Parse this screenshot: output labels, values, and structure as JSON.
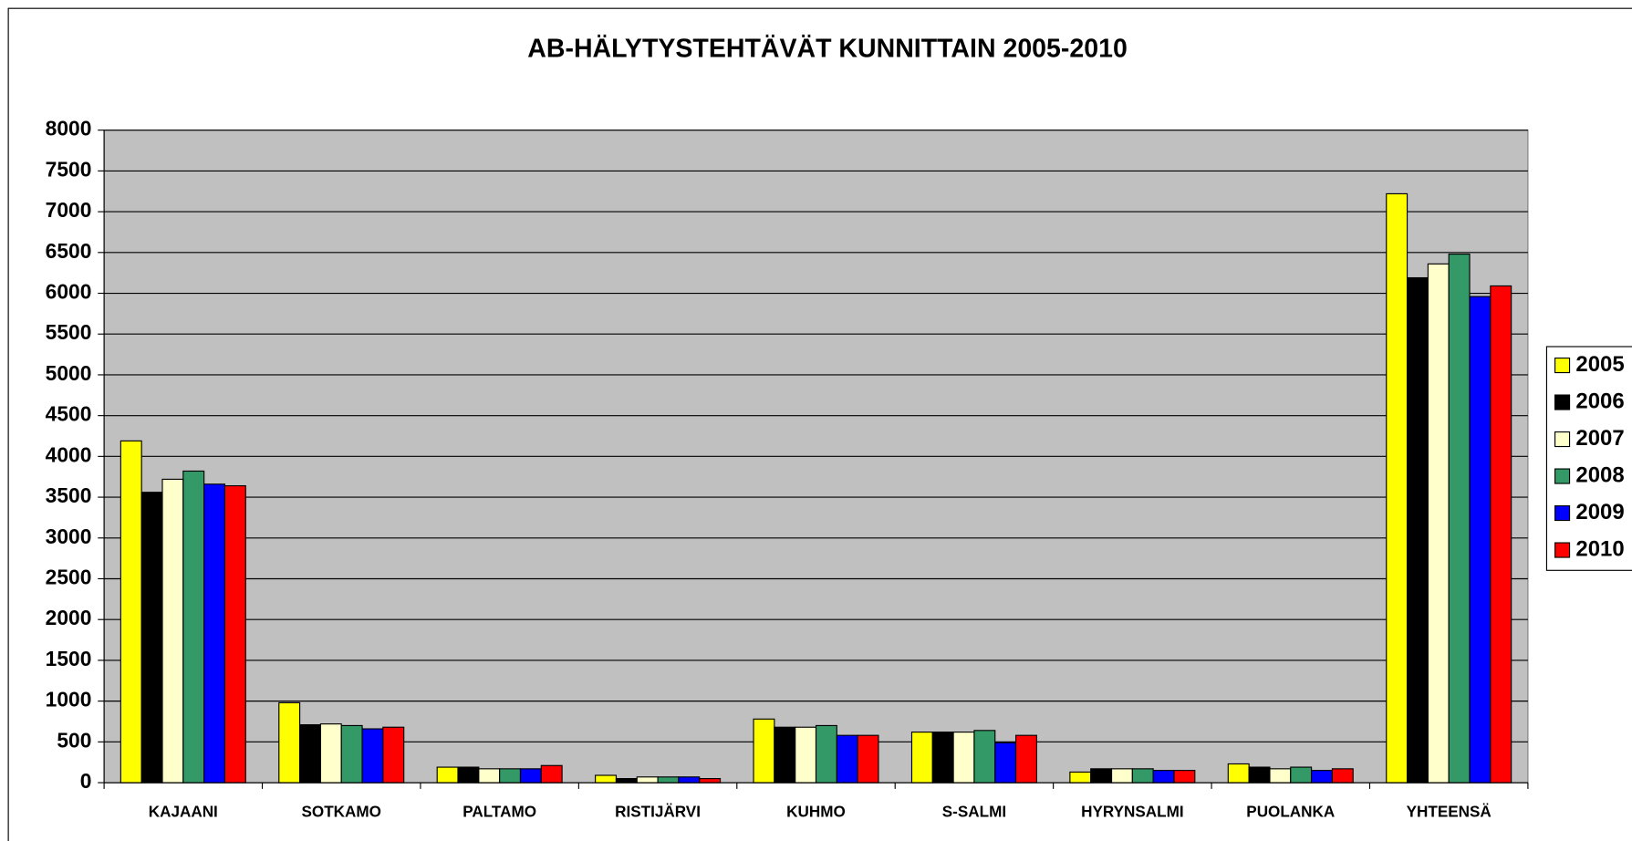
{
  "chart_data": {
    "type": "bar",
    "title": "AB-HÄLYTYSTEHTÄVÄT KUNNITTAIN 2005-2010",
    "categories": [
      "KAJAANI",
      "SOTKAMO",
      "PALTAMO",
      "RISTIJÄRVI",
      "KUHMO",
      "S-SALMI",
      "HYRYNSALMI",
      "PUOLANKA",
      "YHTEENSÄ"
    ],
    "series": [
      {
        "name": "2005",
        "color": "#ffff00",
        "values": [
          4190,
          980,
          190,
          90,
          780,
          620,
          130,
          230,
          7220
        ]
      },
      {
        "name": "2006",
        "color": "#000000",
        "values": [
          3560,
          710,
          190,
          50,
          680,
          620,
          170,
          190,
          6190
        ]
      },
      {
        "name": "2007",
        "color": "#ffffcc",
        "values": [
          3720,
          720,
          170,
          70,
          680,
          620,
          170,
          170,
          6360
        ]
      },
      {
        "name": "2008",
        "color": "#339966",
        "values": [
          3820,
          700,
          170,
          70,
          700,
          640,
          170,
          190,
          6480
        ]
      },
      {
        "name": "2009",
        "color": "#0000ff",
        "values": [
          3660,
          660,
          170,
          70,
          580,
          490,
          150,
          150,
          5960
        ]
      },
      {
        "name": "2010",
        "color": "#ff0000",
        "values": [
          3640,
          680,
          210,
          50,
          580,
          580,
          150,
          170,
          6090
        ]
      }
    ],
    "ylim": [
      0,
      8000
    ],
    "yticks": [
      0,
      500,
      1000,
      1500,
      2000,
      2500,
      3000,
      3500,
      4000,
      4500,
      5000,
      5500,
      6000,
      6500,
      7000,
      7500,
      8000
    ],
    "grid": true,
    "legend": "right"
  }
}
